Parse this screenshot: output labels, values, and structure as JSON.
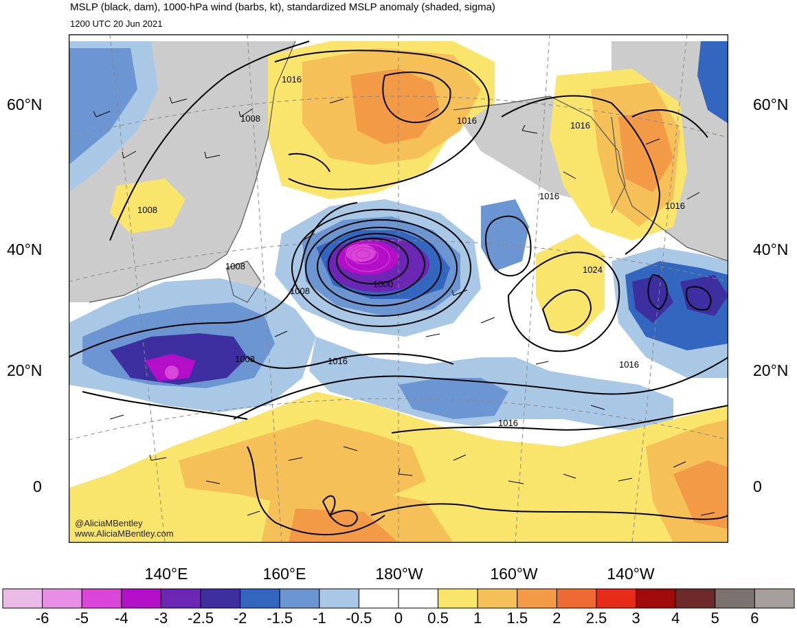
{
  "header": {
    "title": "MSLP (black, dam), 1000-hPa wind (barbs, kt), standardized MSLP anomaly (shaded, sigma)",
    "valid_time": "1200 UTC 20 Jun 2021"
  },
  "axes": {
    "latitude_labels": [
      "60°N",
      "40°N",
      "20°N",
      "0"
    ],
    "longitude_labels": [
      "140°E",
      "160°E",
      "180°W",
      "160°W",
      "140°W"
    ]
  },
  "isobar_labels": [
    {
      "id": "i1",
      "text": "1016"
    },
    {
      "id": "i2",
      "text": "1008"
    },
    {
      "id": "i3",
      "text": "1016"
    },
    {
      "id": "i4",
      "text": "1016"
    },
    {
      "id": "i5",
      "text": "1008"
    },
    {
      "id": "i6",
      "text": "1016"
    },
    {
      "id": "i7",
      "text": "1016"
    },
    {
      "id": "i8",
      "text": "1008"
    },
    {
      "id": "i9",
      "text": "1000"
    },
    {
      "id": "i10",
      "text": "1008"
    },
    {
      "id": "i11",
      "text": "1024"
    },
    {
      "id": "i12",
      "text": "1008"
    },
    {
      "id": "i13",
      "text": "1016"
    },
    {
      "id": "i14",
      "text": "1016"
    },
    {
      "id": "i15",
      "text": "1016"
    }
  ],
  "credits": {
    "handle": "@AliciaMBentley",
    "website": "www.AliciaMBentley.com"
  },
  "colorbar": {
    "ticks": [
      "-6",
      "-5",
      "-4",
      "-3",
      "-2.5",
      "-2",
      "-1.5",
      "-1",
      "-0.5",
      "0",
      "0.5",
      "1",
      "1.5",
      "2",
      "2.5",
      "3",
      "4",
      "5",
      "6"
    ],
    "colors": [
      "#ebbbe8",
      "#e78fe6",
      "#d946d8",
      "#b30fc9",
      "#6b26b3",
      "#3d2fa0",
      "#3366bf",
      "#6b96d1",
      "#a8c8e6",
      "#ffffff",
      "#ffffff",
      "#f9e56b",
      "#f4c057",
      "#f29a45",
      "#ef6a33",
      "#e82a19",
      "#a00a0a",
      "#6e2a2a",
      "#7a7370",
      "#a69e9b"
    ]
  },
  "colors": {
    "land": "#cccccc",
    "ocean_default": "#ffffff",
    "contour": "#000000",
    "coast": "#555555"
  }
}
